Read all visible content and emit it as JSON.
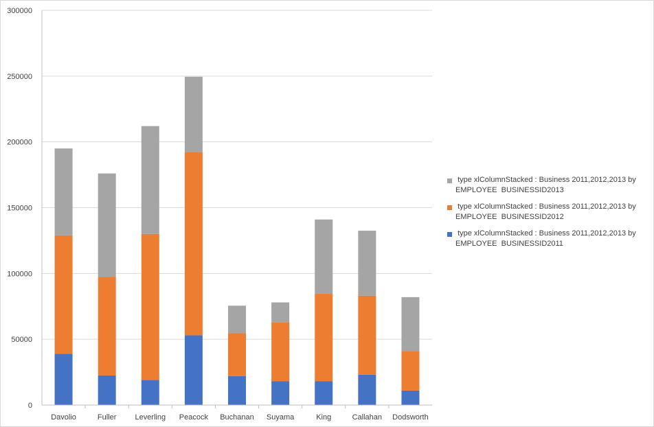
{
  "chart_data": {
    "type": "bar",
    "stacked": true,
    "categories": [
      "Davolio",
      "Fuller",
      "Leverling",
      "Peacock",
      "Buchanan",
      "Suyama",
      "King",
      "Callahan",
      "Dodsworth"
    ],
    "series": [
      {
        "name": " type xlColumnStacked : Business 2011,2012,2013 by EMPLOYEE  BUSINESSID2011",
        "color": "#4472c4",
        "values": [
          39000,
          22500,
          19000,
          53000,
          22000,
          18000,
          18000,
          23000,
          11000
        ]
      },
      {
        "name": " type xlColumnStacked : Business 2011,2012,2013 by EMPLOYEE  BUSINESSID2012",
        "color": "#ed7d31",
        "values": [
          90000,
          75000,
          111000,
          139000,
          32500,
          45000,
          66500,
          60000,
          30000
        ]
      },
      {
        "name": " type xlColumnStacked : Business 2011,2012,2013 by EMPLOYEE  BUSINESSID2013",
        "color": "#a5a5a5",
        "values": [
          66000,
          78500,
          82000,
          57500,
          21000,
          15000,
          56500,
          49500,
          41000
        ]
      }
    ],
    "yticks": [
      "0",
      "50000",
      "100000",
      "150000",
      "200000",
      "250000",
      "300000"
    ],
    "ylim": [
      0,
      300000
    ],
    "grid": true,
    "legend_position": "right",
    "legend_order": [
      2,
      1,
      0
    ],
    "title": "",
    "xlabel": "",
    "ylabel": ""
  }
}
